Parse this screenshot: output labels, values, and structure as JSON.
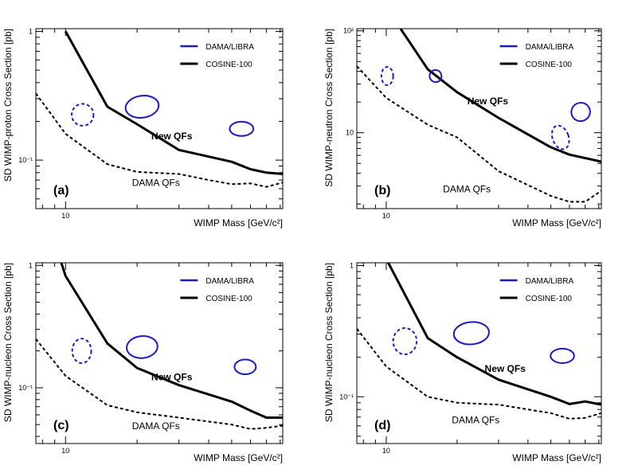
{
  "colors": {
    "dama_libra": "#1a1acc",
    "cosine": "#000000",
    "dama_qf": "#000000",
    "axis": "#000000"
  },
  "chart_data": [
    {
      "panel": "(a)",
      "type": "line",
      "xlabel": "WIMP Mass [GeV/c²]",
      "ylabel": "SD WIMP-proton Cross Section [pb]",
      "xscale": "log",
      "yscale": "log",
      "xlim": [
        7.5,
        82
      ],
      "ylim": [
        0.042,
        1.05
      ],
      "x_ticks": [
        {
          "v": 10,
          "label": "10"
        }
      ],
      "y_ticks": [
        {
          "v": 0.1,
          "label": "10⁻¹"
        },
        {
          "v": 1,
          "label": "1"
        }
      ],
      "legend": {
        "position": "top-right",
        "entries": [
          {
            "name": "DAMA/LIBRA",
            "style": "blue-line"
          },
          {
            "name": "COSINE-100",
            "style": "black-line"
          }
        ]
      },
      "series": [
        {
          "name": "COSINE-100 New QFs",
          "style": "solid",
          "x": [
            10,
            15,
            20,
            30,
            50,
            60,
            70,
            82
          ],
          "y": [
            1.0,
            0.26,
            0.19,
            0.12,
            0.097,
            0.085,
            0.08,
            0.078
          ]
        },
        {
          "name": "COSINE-100 DAMA QFs",
          "style": "dashed",
          "x": [
            7.5,
            10,
            15,
            20,
            30,
            40,
            50,
            60,
            70,
            82
          ],
          "y": [
            0.33,
            0.16,
            0.093,
            0.081,
            0.078,
            0.07,
            0.065,
            0.066,
            0.062,
            0.067
          ]
        }
      ],
      "regions": [
        {
          "name": "DAMA/LIBRA",
          "style": "solid",
          "cx": 21,
          "cy": 0.26,
          "rx": 0.07,
          "ry": 0.085,
          "rot": -8
        },
        {
          "name": "DAMA/LIBRA",
          "style": "solid",
          "cx": 55,
          "cy": 0.175,
          "rx": 0.05,
          "ry": 0.055,
          "rot": 0
        },
        {
          "name": "DAMA/LIBRA",
          "style": "dashed",
          "cx": 11.8,
          "cy": 0.225,
          "rx": 0.046,
          "ry": 0.085,
          "rot": 0
        }
      ],
      "annotations": [
        {
          "text": "New QFs",
          "bold": true,
          "x": 28,
          "y": 0.145
        },
        {
          "text": "DAMA QFs",
          "bold": false,
          "x": 24,
          "y": 0.063
        }
      ]
    },
    {
      "panel": "(b)",
      "type": "line",
      "xlabel": "WIMP Mass [GeV/c²]",
      "ylabel": "SD WIMP-neutron Cross Section [pb]",
      "xscale": "log",
      "yscale": "log",
      "xlim": [
        7.5,
        82
      ],
      "ylim": [
        1.8,
        105
      ],
      "x_ticks": [
        {
          "v": 10,
          "label": "10"
        }
      ],
      "y_ticks": [
        {
          "v": 10,
          "label": "10"
        },
        {
          "v": 100,
          "label": "10²"
        }
      ],
      "legend": {
        "position": "top-right",
        "entries": [
          {
            "name": "DAMA/LIBRA",
            "style": "blue-line"
          },
          {
            "name": "COSINE-100",
            "style": "black-line"
          }
        ]
      },
      "series": [
        {
          "name": "COSINE-100 New QFs",
          "style": "solid",
          "x": [
            11.5,
            15,
            20,
            30,
            50,
            60,
            82
          ],
          "y": [
            105,
            42,
            25,
            14,
            7.2,
            6.1,
            5.2
          ]
        },
        {
          "name": "COSINE-100 DAMA QFs",
          "style": "dashed",
          "x": [
            7.5,
            10,
            15,
            20,
            30,
            50,
            60,
            70,
            82
          ],
          "y": [
            45,
            22,
            12,
            9,
            4.2,
            2.4,
            2.1,
            2.1,
            2.7
          ]
        }
      ],
      "regions": [
        {
          "name": "DAMA/LIBRA",
          "style": "solid",
          "cx": 16.2,
          "cy": 36,
          "rx": 0.025,
          "ry": 0.06,
          "rot": -25
        },
        {
          "name": "DAMA/LIBRA",
          "style": "solid",
          "cx": 67,
          "cy": 16,
          "rx": 0.04,
          "ry": 0.09,
          "rot": -25
        },
        {
          "name": "DAMA/LIBRA",
          "style": "dashed",
          "cx": 10.1,
          "cy": 36,
          "rx": 0.025,
          "ry": 0.09,
          "rot": 0
        },
        {
          "name": "DAMA/LIBRA",
          "style": "dashed",
          "cx": 55,
          "cy": 9,
          "rx": 0.034,
          "ry": 0.12,
          "rot": -20
        }
      ],
      "annotations": [
        {
          "text": "New QFs",
          "bold": true,
          "x": 27,
          "y": 19
        },
        {
          "text": "DAMA QFs",
          "bold": false,
          "x": 22,
          "y": 2.6
        }
      ]
    },
    {
      "panel": "(c)",
      "type": "line",
      "xlabel": "WIMP Mass [GeV/c²]",
      "ylabel": "SD WIMP-nucleon Cross Section [pb]",
      "xscale": "log",
      "yscale": "log",
      "xlim": [
        7.5,
        82
      ],
      "ylim": [
        0.035,
        1.05
      ],
      "x_ticks": [
        {
          "v": 10,
          "label": "10"
        }
      ],
      "y_ticks": [
        {
          "v": 0.1,
          "label": "10⁻¹"
        },
        {
          "v": 1,
          "label": "1"
        }
      ],
      "legend": {
        "position": "top-right",
        "entries": [
          {
            "name": "DAMA/LIBRA",
            "style": "blue-line"
          },
          {
            "name": "COSINE-100",
            "style": "black-line"
          }
        ]
      },
      "series": [
        {
          "name": "COSINE-100 New QFs",
          "style": "solid",
          "x": [
            9.6,
            10,
            15,
            20,
            30,
            50,
            60,
            70,
            82
          ],
          "y": [
            1.05,
            0.82,
            0.23,
            0.145,
            0.105,
            0.077,
            0.065,
            0.057,
            0.057
          ]
        },
        {
          "name": "COSINE-100 DAMA QFs",
          "style": "dashed",
          "x": [
            7.5,
            10,
            15,
            20,
            30,
            50,
            60,
            70,
            82
          ],
          "y": [
            0.25,
            0.125,
            0.072,
            0.063,
            0.057,
            0.05,
            0.046,
            0.047,
            0.049
          ]
        }
      ],
      "regions": [
        {
          "name": "DAMA/LIBRA",
          "style": "solid",
          "cx": 21,
          "cy": 0.215,
          "rx": 0.065,
          "ry": 0.09,
          "rot": -5
        },
        {
          "name": "DAMA/LIBRA",
          "style": "solid",
          "cx": 57,
          "cy": 0.148,
          "rx": 0.045,
          "ry": 0.06,
          "rot": 0
        },
        {
          "name": "DAMA/LIBRA",
          "style": "dashed",
          "cx": 11.7,
          "cy": 0.2,
          "rx": 0.04,
          "ry": 0.1,
          "rot": 0
        }
      ],
      "annotations": [
        {
          "text": "New QFs",
          "bold": true,
          "x": 28,
          "y": 0.115
        },
        {
          "text": "DAMA QFs",
          "bold": false,
          "x": 24,
          "y": 0.046
        }
      ]
    },
    {
      "panel": "(d)",
      "type": "line",
      "xlabel": "WIMP Mass [GeV/c²]",
      "ylabel": "SD WIMP-nucleon Cross Section [pb]",
      "xscale": "log",
      "yscale": "log",
      "xlim": [
        7.5,
        82
      ],
      "ylim": [
        0.044,
        1.05
      ],
      "x_ticks": [
        {
          "v": 10,
          "label": "10"
        }
      ],
      "y_ticks": [
        {
          "v": 0.1,
          "label": "10⁻¹"
        },
        {
          "v": 1,
          "label": "1"
        }
      ],
      "legend": {
        "position": "top-right",
        "entries": [
          {
            "name": "DAMA/LIBRA",
            "style": "blue-line"
          },
          {
            "name": "COSINE-100",
            "style": "black-line"
          }
        ]
      },
      "series": [
        {
          "name": "COSINE-100 New QFs",
          "style": "solid",
          "x": [
            10.2,
            15,
            20,
            30,
            50,
            60,
            70,
            82
          ],
          "y": [
            1.05,
            0.28,
            0.2,
            0.135,
            0.1,
            0.088,
            0.092,
            0.087
          ]
        },
        {
          "name": "COSINE-100 DAMA QFs",
          "style": "dashed",
          "x": [
            7.5,
            10,
            15,
            20,
            30,
            40,
            50,
            60,
            70,
            82
          ],
          "y": [
            0.33,
            0.17,
            0.1,
            0.09,
            0.087,
            0.08,
            0.075,
            0.068,
            0.069,
            0.075
          ]
        }
      ],
      "regions": [
        {
          "name": "DAMA/LIBRA",
          "style": "solid",
          "cx": 23,
          "cy": 0.305,
          "rx": 0.075,
          "ry": 0.085,
          "rot": -5
        },
        {
          "name": "DAMA/LIBRA",
          "style": "solid",
          "cx": 56,
          "cy": 0.205,
          "rx": 0.05,
          "ry": 0.055,
          "rot": 0
        },
        {
          "name": "DAMA/LIBRA",
          "style": "dashed",
          "cx": 12,
          "cy": 0.265,
          "rx": 0.05,
          "ry": 0.1,
          "rot": 0
        }
      ],
      "annotations": [
        {
          "text": "New QFs",
          "bold": true,
          "x": 32,
          "y": 0.155
        },
        {
          "text": "DAMA QFs",
          "bold": false,
          "x": 24,
          "y": 0.063
        }
      ]
    }
  ]
}
